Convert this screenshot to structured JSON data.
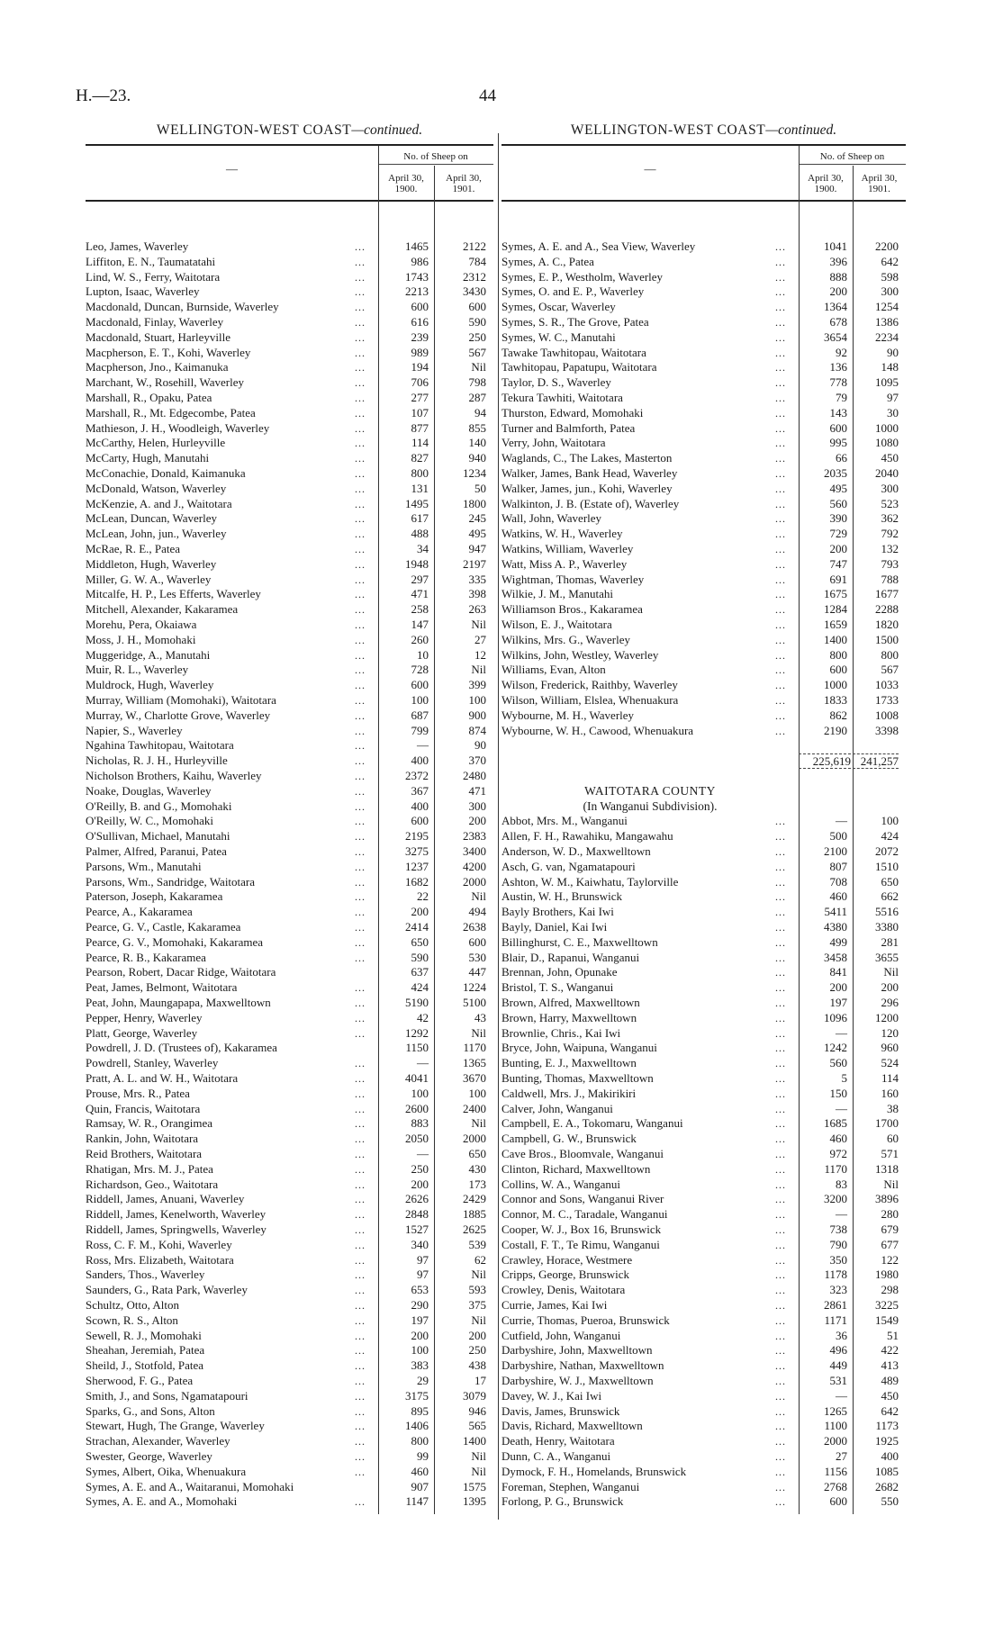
{
  "page": {
    "doc_code": "H.—23.",
    "page_number": "44"
  },
  "left": {
    "title": "WELLINGTON-WEST COAST",
    "title_suffix": "—continued.",
    "name_header": "—",
    "group_header": "No. of Sheep on",
    "col1": "April 30, 1900.",
    "col2": "April 30, 1901.",
    "rows": [
      [
        "Leo, James, Waverley",
        "1465",
        "2122"
      ],
      [
        "Liffiton, E. N., Taumatatahi",
        "986",
        "784"
      ],
      [
        "Lind, W. S., Ferry, Waitotara",
        "1743",
        "2312"
      ],
      [
        "Lupton, Isaac, Waverley",
        "2213",
        "3430"
      ],
      [
        "Macdonald, Duncan, Burnside, Waverley",
        "600",
        "600"
      ],
      [
        "Macdonald, Finlay, Waverley",
        "616",
        "590"
      ],
      [
        "Macdonald, Stuart, Harleyville",
        "239",
        "250"
      ],
      [
        "Macpherson, E. T., Kohi, Waverley",
        "989",
        "567"
      ],
      [
        "Macpherson, Jno., Kaimanuka",
        "194",
        "Nil"
      ],
      [
        "Marchant, W., Rosehill, Waverley",
        "706",
        "798"
      ],
      [
        "Marshall, R., Opaku, Patea",
        "277",
        "287"
      ],
      [
        "Marshall, R., Mt. Edgecombe, Patea",
        "107",
        "94"
      ],
      [
        "Mathieson, J. H., Woodleigh, Waverley",
        "877",
        "855"
      ],
      [
        "McCarthy, Helen, Hurleyville",
        "114",
        "140"
      ],
      [
        "McCarty, Hugh, Manutahi",
        "827",
        "940"
      ],
      [
        "McConachie, Donald, Kaimanuka",
        "800",
        "1234"
      ],
      [
        "McDonald, Watson, Waverley",
        "131",
        "50"
      ],
      [
        "McKenzie, A. and J., Waitotara",
        "1495",
        "1800"
      ],
      [
        "McLean, Duncan, Waverley",
        "617",
        "245"
      ],
      [
        "McLean, John, jun., Waverley",
        "488",
        "495"
      ],
      [
        "McRae, R. E., Patea",
        "34",
        "947"
      ],
      [
        "Middleton, Hugh, Waverley",
        "1948",
        "2197"
      ],
      [
        "Miller, G. W. A., Waverley",
        "297",
        "335"
      ],
      [
        "Mitcalfe, H. P., Les Efferts, Waverley",
        "471",
        "398"
      ],
      [
        "Mitchell, Alexander, Kakaramea",
        "258",
        "263"
      ],
      [
        "Morehu, Pera, Okaiawa",
        "147",
        "Nil"
      ],
      [
        "Moss, J. H., Momohaki",
        "260",
        "27"
      ],
      [
        "Muggeridge, A., Manutahi",
        "10",
        "12"
      ],
      [
        "Muir, R. L., Waverley",
        "728",
        "Nil"
      ],
      [
        "Muldrock, Hugh, Waverley",
        "600",
        "399"
      ],
      [
        "Murray, William (Momohaki), Waitotara",
        "100",
        "100"
      ],
      [
        "Murray, W., Charlotte Grove, Waverley",
        "687",
        "900"
      ],
      [
        "Napier, S., Waverley",
        "799",
        "874"
      ],
      [
        "Ngahina Tawhitopau, Waitotara",
        "—",
        "90"
      ],
      [
        "Nicholas, R. J. H., Hurleyville",
        "400",
        "370"
      ],
      [
        "Nicholson Brothers, Kaihu, Waverley",
        "2372",
        "2480"
      ],
      [
        "Noake, Douglas, Waverley",
        "367",
        "471"
      ],
      [
        "O'Reilly, B. and G., Momohaki",
        "400",
        "300"
      ],
      [
        "O'Reilly, W. C., Momohaki",
        "600",
        "200"
      ],
      [
        "O'Sullivan, Michael, Manutahi",
        "2195",
        "2383"
      ],
      [
        "Palmer, Alfred, Paranui, Patea",
        "3275",
        "3400"
      ],
      [
        "Parsons, Wm., Manutahi",
        "1237",
        "4200"
      ],
      [
        "Parsons, Wm., Sandridge, Waitotara",
        "1682",
        "2000"
      ],
      [
        "Paterson, Joseph, Kakaramea",
        "22",
        "Nil"
      ],
      [
        "Pearce, A., Kakaramea",
        "200",
        "494"
      ],
      [
        "Pearce, G. V., Castle, Kakaramea",
        "2414",
        "2638"
      ],
      [
        "Pearce, G. V., Momohaki, Kakaramea",
        "650",
        "600"
      ],
      [
        "Pearce, R. B., Kakaramea",
        "590",
        "530"
      ],
      [
        "Pearson, Robert, Dacar Ridge, Waitotara",
        "637",
        "447"
      ],
      [
        "Peat, James, Belmont, Waitotara",
        "424",
        "1224"
      ],
      [
        "Peat, John, Maungapapa, Maxwelltown",
        "5190",
        "5100"
      ],
      [
        "Pepper, Henry, Waverley",
        "42",
        "43"
      ],
      [
        "Platt, George, Waverley",
        "1292",
        "Nil"
      ],
      [
        "Powdrell, J. D. (Trustees of), Kakaramea",
        "1150",
        "1170"
      ],
      [
        "Powdrell, Stanley, Waverley",
        "—",
        "1365"
      ],
      [
        "Pratt, A. L. and W. H., Waitotara",
        "4041",
        "3670"
      ],
      [
        "Prouse, Mrs. R., Patea",
        "100",
        "100"
      ],
      [
        "Quin, Francis, Waitotara",
        "2600",
        "2400"
      ],
      [
        "Ramsay, W. R., Orangimea",
        "883",
        "Nil"
      ],
      [
        "Rankin, John, Waitotara",
        "2050",
        "2000"
      ],
      [
        "Reid Brothers, Waitotara",
        "—",
        "650"
      ],
      [
        "Rhatigan, Mrs. M. J., Patea",
        "250",
        "430"
      ],
      [
        "Richardson, Geo., Waitotara",
        "200",
        "173"
      ],
      [
        "Riddell, James, Anuani, Waverley",
        "2626",
        "2429"
      ],
      [
        "Riddell, James, Kenelworth, Waverley",
        "2848",
        "1885"
      ],
      [
        "Riddell, James, Springwells, Waverley",
        "1527",
        "2625"
      ],
      [
        "Ross, C. F. M., Kohi, Waverley",
        "340",
        "539"
      ],
      [
        "Ross, Mrs. Elizabeth, Waitotara",
        "97",
        "62"
      ],
      [
        "Sanders, Thos., Waverley",
        "97",
        "Nil"
      ],
      [
        "Saunders, G., Rata Park, Waverley",
        "653",
        "593"
      ],
      [
        "Schultz, Otto, Alton",
        "290",
        "375"
      ],
      [
        "Scown, R. S., Alton",
        "197",
        "Nil"
      ],
      [
        "Sewell, R. J., Momohaki",
        "200",
        "200"
      ],
      [
        "Sheahan, Jeremiah, Patea",
        "100",
        "250"
      ],
      [
        "Sheild, J., Stotfold, Patea",
        "383",
        "438"
      ],
      [
        "Sherwood, F. G., Patea",
        "29",
        "17"
      ],
      [
        "Smith, J., and Sons, Ngamatapouri",
        "3175",
        "3079"
      ],
      [
        "Sparks, G., and Sons, Alton",
        "895",
        "946"
      ],
      [
        "Stewart, Hugh, The Grange, Waverley",
        "1406",
        "565"
      ],
      [
        "Strachan, Alexander, Waverley",
        "800",
        "1400"
      ],
      [
        "Swester, George, Waverley",
        "99",
        "Nil"
      ],
      [
        "Symes, Albert, Oika, Whenuakura",
        "460",
        "Nil"
      ],
      [
        "Symes, A. E. and A., Waitaranui, Momohaki",
        "907",
        "1575"
      ],
      [
        "Symes, A. E. and A., Momohaki",
        "1147",
        "1395"
      ]
    ]
  },
  "right": {
    "title": "WELLINGTON-WEST COAST",
    "title_suffix": "—continued.",
    "name_header": "—",
    "group_header": "No. of Sheep on",
    "col1": "April 30, 1900.",
    "col2": "April 30, 1901.",
    "rows": [
      [
        "Symes, A. E. and A., Sea View, Waverley",
        "1041",
        "2200"
      ],
      [
        "Symes, A. C., Patea",
        "396",
        "642"
      ],
      [
        "Symes, E. P., Westholm, Waverley",
        "888",
        "598"
      ],
      [
        "Symes, O. and E. P., Waverley",
        "200",
        "300"
      ],
      [
        "Symes, Oscar, Waverley",
        "1364",
        "1254"
      ],
      [
        "Symes, S. R., The Grove, Patea",
        "678",
        "1386"
      ],
      [
        "Symes, W. C., Manutahi",
        "3654",
        "2234"
      ],
      [
        "Tawake Tawhitopau, Waitotara",
        "92",
        "90"
      ],
      [
        "Tawhitopau, Papatupu, Waitotara",
        "136",
        "148"
      ],
      [
        "Taylor, D. S., Waverley",
        "778",
        "1095"
      ],
      [
        "Tekura Tawhiti, Waitotara",
        "79",
        "97"
      ],
      [
        "Thurston, Edward, Momohaki",
        "143",
        "30"
      ],
      [
        "Turner and Balmforth, Patea",
        "600",
        "1000"
      ],
      [
        "Verry, John, Waitotara",
        "995",
        "1080"
      ],
      [
        "Waglands, C., The Lakes, Masterton",
        "66",
        "450"
      ],
      [
        "Walker, James, Bank Head, Waverley",
        "2035",
        "2040"
      ],
      [
        "Walker, James, jun., Kohi, Waverley",
        "495",
        "300"
      ],
      [
        "Walkinton, J. B. (Estate of), Waverley",
        "560",
        "523"
      ],
      [
        "Wall, John, Waverley",
        "390",
        "362"
      ],
      [
        "Watkins, W. H., Waverley",
        "729",
        "792"
      ],
      [
        "Watkins, William, Waverley",
        "200",
        "132"
      ],
      [
        "Watt, Miss A. P., Waverley",
        "747",
        "793"
      ],
      [
        "Wightman, Thomas, Waverley",
        "691",
        "788"
      ],
      [
        "Wilkie, J. M., Manutahi",
        "1675",
        "1677"
      ],
      [
        "Williamson Bros., Kakaramea",
        "1284",
        "2288"
      ],
      [
        "Wilson, E. J., Waitotara",
        "1659",
        "1820"
      ],
      [
        "Wilkins, Mrs. G., Waverley",
        "1400",
        "1500"
      ],
      [
        "Wilkins, John, Westley, Waverley",
        "800",
        "800"
      ],
      [
        "Williams, Evan, Alton",
        "600",
        "567"
      ],
      [
        "Wilson, Frederick, Raithby, Waverley",
        "1000",
        "1033"
      ],
      [
        "Wilson, William, Elslea, Whenuakura",
        "1833",
        "1733"
      ],
      [
        "Wybourne, M. H., Waverley",
        "862",
        "1008"
      ],
      [
        "Wybourne, W. H., Cawood, Whenuakura",
        "2190",
        "3398"
      ]
    ],
    "total": [
      "225,619",
      "241,257"
    ],
    "county_heading": "WAITOTARA COUNTY",
    "county_subheading": "(In Wanganui Subdivision).",
    "county_rows": [
      [
        "Abbot, Mrs. M., Wanganui",
        "—",
        "100"
      ],
      [
        "Allen, F. H., Rawahiku, Mangawahu",
        "500",
        "424"
      ],
      [
        "Anderson, W. D., Maxwelltown",
        "2100",
        "2072"
      ],
      [
        "Asch, G. van, Ngamatapouri",
        "807",
        "1510"
      ],
      [
        "Ashton, W. M., Kaiwhatu, Taylorville",
        "708",
        "650"
      ],
      [
        "Austin, W. H., Brunswick",
        "460",
        "662"
      ],
      [
        "Bayly Brothers, Kai Iwi",
        "5411",
        "5516"
      ],
      [
        "Bayly, Daniel, Kai Iwi",
        "4380",
        "3380"
      ],
      [
        "Billinghurst, C. E., Maxwelltown",
        "499",
        "281"
      ],
      [
        "Blair, D., Rapanui, Wanganui",
        "3458",
        "3655"
      ],
      [
        "Brennan, John, Opunake",
        "841",
        "Nil"
      ],
      [
        "Bristol, T. S., Wanganui",
        "200",
        "200"
      ],
      [
        "Brown, Alfred, Maxwelltown",
        "197",
        "296"
      ],
      [
        "Brown, Harry, Maxwelltown",
        "1096",
        "1200"
      ],
      [
        "Brownlie, Chris., Kai Iwi",
        "—",
        "120"
      ],
      [
        "Bryce, John, Waipuna, Wanganui",
        "1242",
        "960"
      ],
      [
        "Bunting, E. J., Maxwelltown",
        "560",
        "524"
      ],
      [
        "Bunting, Thomas, Maxwelltown",
        "5",
        "114"
      ],
      [
        "Caldwell, Mrs. J., Makirikiri",
        "150",
        "160"
      ],
      [
        "Calver, John, Wanganui",
        "—",
        "38"
      ],
      [
        "Campbell, E. A., Tokomaru, Wanganui",
        "1685",
        "1700"
      ],
      [
        "Campbell, G. W., Brunswick",
        "460",
        "60"
      ],
      [
        "Cave Bros., Bloomvale, Wanganui",
        "972",
        "571"
      ],
      [
        "Clinton, Richard, Maxwelltown",
        "1170",
        "1318"
      ],
      [
        "Collins, W. A., Wanganui",
        "83",
        "Nil"
      ],
      [
        "Connor and Sons, Wanganui River",
        "3200",
        "3896"
      ],
      [
        "Connor, M. C., Taradale, Wanganui",
        "—",
        "280"
      ],
      [
        "Cooper, W. J., Box 16, Brunswick",
        "738",
        "679"
      ],
      [
        "Costall, F. T., Te Rimu, Wanganui",
        "790",
        "677"
      ],
      [
        "Crawley, Horace, Westmere",
        "350",
        "122"
      ],
      [
        "Cripps, George, Brunswick",
        "1178",
        "1980"
      ],
      [
        "Crowley, Denis, Waitotara",
        "323",
        "298"
      ],
      [
        "Currie, James, Kai Iwi",
        "2861",
        "3225"
      ],
      [
        "Currie, Thomas, Pueroa, Brunswick",
        "1171",
        "1549"
      ],
      [
        "Cutfield, John, Wanganui",
        "36",
        "51"
      ],
      [
        "Darbyshire, John, Maxwelltown",
        "496",
        "422"
      ],
      [
        "Darbyshire, Nathan, Maxwelltown",
        "449",
        "413"
      ],
      [
        "Darbyshire, W. J., Maxwelltown",
        "531",
        "489"
      ],
      [
        "Davey, W. J., Kai Iwi",
        "—",
        "450"
      ],
      [
        "Davis, James, Brunswick",
        "1265",
        "642"
      ],
      [
        "Davis, Richard, Maxwelltown",
        "1100",
        "1173"
      ],
      [
        "Death, Henry, Waitotara",
        "2000",
        "1925"
      ],
      [
        "Dunn, C. A., Wanganui",
        "27",
        "400"
      ],
      [
        "Dymock, F. H., Homelands, Brunswick",
        "1156",
        "1085"
      ],
      [
        "Foreman, Stephen, Wanganui",
        "2768",
        "2682"
      ],
      [
        "Forlong, P. G., Brunswick",
        "600",
        "550"
      ]
    ]
  }
}
